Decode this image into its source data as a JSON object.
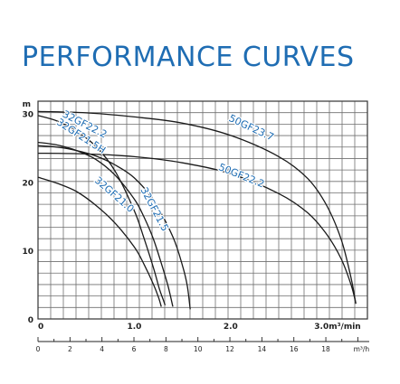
{
  "title": "PERFORMANCE CURVES",
  "chart_data": {
    "type": "line",
    "ylabel": "m",
    "ylim": [
      0,
      31.8
    ],
    "y_ticks": [
      {
        "value": 0,
        "label": "0"
      },
      {
        "value": 10,
        "label": "10"
      },
      {
        "value": 20,
        "label": "20"
      },
      {
        "value": 30,
        "label": "30"
      }
    ],
    "xlim": [
      0,
      3.42
    ],
    "x_ticks": [
      {
        "value": 0,
        "label": "0"
      },
      {
        "value": 1.0,
        "label": "1.0"
      },
      {
        "value": 2.0,
        "label": "2.0"
      },
      {
        "value": 3.0,
        "label": "3.0m³/min"
      }
    ],
    "x2_ticks": [
      {
        "value": 0,
        "label": "0"
      },
      {
        "value": 2,
        "label": "2"
      },
      {
        "value": 4,
        "label": "4"
      },
      {
        "value": 6,
        "label": "6"
      },
      {
        "value": 8,
        "label": "8"
      },
      {
        "value": 10,
        "label": "10"
      },
      {
        "value": 12,
        "label": "12"
      },
      {
        "value": 14,
        "label": "14"
      },
      {
        "value": 16,
        "label": "16"
      },
      {
        "value": 18,
        "label": "18"
      },
      {
        "value": 20,
        "label": "m³/h"
      }
    ],
    "grid": true,
    "line_color": "#1a1a1a",
    "label_color": "#1f6db3",
    "series": [
      {
        "name": "32GF22.2",
        "label_at": [
          0.47,
          28.0
        ],
        "label_angle": 27,
        "x": [
          0,
          0.2,
          0.4,
          0.6,
          0.8,
          1.0,
          1.1,
          1.2,
          1.26,
          1.3,
          1.32
        ],
        "y": [
          29.7,
          28.9,
          27.4,
          25.2,
          21.6,
          15.8,
          11.8,
          7.4,
          4.4,
          2.8,
          2.0
        ]
      },
      {
        "name": "32GF21.5H",
        "label_at": [
          0.43,
          26.3
        ],
        "label_angle": 33,
        "x": [
          0,
          0.2,
          0.4,
          0.6,
          0.8,
          1.0,
          1.1,
          1.2,
          1.3,
          1.35,
          1.4
        ],
        "y": [
          25.8,
          25.4,
          24.6,
          23.3,
          21.0,
          17.5,
          14.9,
          11.6,
          7.2,
          4.8,
          1.8
        ]
      },
      {
        "name": "32GF21.5",
        "label_at": [
          1.18,
          15.8
        ],
        "label_angle": 62,
        "x": [
          0,
          0.2,
          0.4,
          0.6,
          0.8,
          1.0,
          1.2,
          1.4,
          1.5,
          1.55,
          1.58
        ],
        "y": [
          25.3,
          25.1,
          24.6,
          23.8,
          22.5,
          20.6,
          17.3,
          12.0,
          7.8,
          4.8,
          1.4
        ]
      },
      {
        "name": "32GF21.0",
        "label_at": [
          0.77,
          17.8
        ],
        "label_angle": 41,
        "x": [
          0,
          0.2,
          0.4,
          0.6,
          0.8,
          1.0,
          1.1,
          1.2,
          1.25,
          1.28
        ],
        "y": [
          20.7,
          19.8,
          18.6,
          16.6,
          14.0,
          10.5,
          8.0,
          5.0,
          3.2,
          1.8
        ]
      },
      {
        "name": "50GF23.7",
        "label_at": [
          2.2,
          27.5
        ],
        "label_angle": 25,
        "x": [
          0,
          0.5,
          1.0,
          1.5,
          2.0,
          2.5,
          2.8,
          3.0,
          3.15,
          3.25,
          3.3
        ],
        "y": [
          30.3,
          30.1,
          29.5,
          28.6,
          26.8,
          23.7,
          20.5,
          16.5,
          11.5,
          6.0,
          2.2
        ]
      },
      {
        "name": "50GF22.2",
        "label_at": [
          2.1,
          20.5
        ],
        "label_angle": 22,
        "x": [
          0,
          0.5,
          1.0,
          1.5,
          2.0,
          2.5,
          2.8,
          3.0,
          3.15,
          3.25,
          3.3
        ],
        "y": [
          24.2,
          24.1,
          23.7,
          22.8,
          21.2,
          18.3,
          15.5,
          12.3,
          8.7,
          5.0,
          2.3
        ]
      }
    ]
  }
}
